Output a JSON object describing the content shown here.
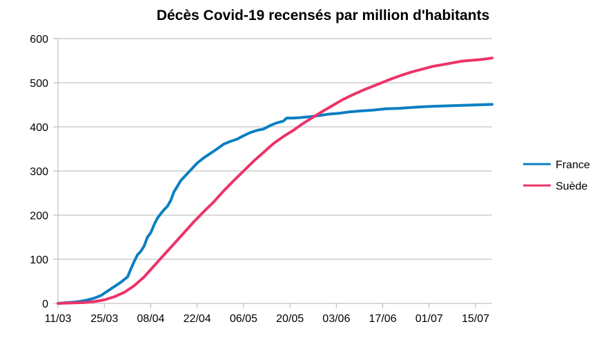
{
  "chart_data": {
    "type": "line",
    "title": "Décès Covid-19 recensés par million d'habitants",
    "xlabel": "",
    "ylabel": "",
    "x_ticks": [
      "11/03",
      "25/03",
      "08/04",
      "22/04",
      "06/05",
      "20/05",
      "03/06",
      "17/06",
      "01/07",
      "15/07"
    ],
    "y_ticks": [
      "0",
      "100",
      "200",
      "300",
      "400",
      "500",
      "600"
    ],
    "ylim": [
      0,
      600
    ],
    "grid": "horizontal",
    "legend_position": "right",
    "x_first": "2020-03-11",
    "x_last": "2020-07-20",
    "series": [
      {
        "name": "France",
        "color": "#0a7fc2",
        "points": [
          [
            "2020-03-11",
            0
          ],
          [
            "2020-03-14",
            2
          ],
          [
            "2020-03-16",
            3
          ],
          [
            "2020-03-18",
            5
          ],
          [
            "2020-03-20",
            8
          ],
          [
            "2020-03-22",
            12
          ],
          [
            "2020-03-24",
            18
          ],
          [
            "2020-03-26",
            28
          ],
          [
            "2020-03-28",
            38
          ],
          [
            "2020-03-30",
            48
          ],
          [
            "2020-04-01",
            60
          ],
          [
            "2020-04-02",
            78
          ],
          [
            "2020-04-03",
            95
          ],
          [
            "2020-04-04",
            110
          ],
          [
            "2020-04-05",
            118
          ],
          [
            "2020-04-06",
            130
          ],
          [
            "2020-04-07",
            150
          ],
          [
            "2020-04-08",
            160
          ],
          [
            "2020-04-09",
            178
          ],
          [
            "2020-04-10",
            193
          ],
          [
            "2020-04-11",
            203
          ],
          [
            "2020-04-12",
            212
          ],
          [
            "2020-04-13",
            220
          ],
          [
            "2020-04-14",
            233
          ],
          [
            "2020-04-15",
            253
          ],
          [
            "2020-04-16",
            265
          ],
          [
            "2020-04-17",
            278
          ],
          [
            "2020-04-18",
            286
          ],
          [
            "2020-04-20",
            302
          ],
          [
            "2020-04-22",
            318
          ],
          [
            "2020-04-24",
            330
          ],
          [
            "2020-04-26",
            340
          ],
          [
            "2020-04-28",
            350
          ],
          [
            "2020-04-30",
            361
          ],
          [
            "2020-05-02",
            367
          ],
          [
            "2020-05-04",
            372
          ],
          [
            "2020-05-06",
            380
          ],
          [
            "2020-05-08",
            387
          ],
          [
            "2020-05-10",
            392
          ],
          [
            "2020-05-12",
            395
          ],
          [
            "2020-05-14",
            403
          ],
          [
            "2020-05-16",
            409
          ],
          [
            "2020-05-18",
            413
          ],
          [
            "2020-05-19",
            420
          ],
          [
            "2020-05-21",
            420
          ],
          [
            "2020-05-23",
            421
          ],
          [
            "2020-05-26",
            423
          ],
          [
            "2020-05-29",
            426
          ],
          [
            "2020-06-01",
            429
          ],
          [
            "2020-06-04",
            431
          ],
          [
            "2020-06-07",
            434
          ],
          [
            "2020-06-10",
            436
          ],
          [
            "2020-06-14",
            438
          ],
          [
            "2020-06-18",
            441
          ],
          [
            "2020-06-22",
            442
          ],
          [
            "2020-06-26",
            444
          ],
          [
            "2020-06-30",
            446
          ],
          [
            "2020-07-04",
            447
          ],
          [
            "2020-07-08",
            448
          ],
          [
            "2020-07-12",
            449
          ],
          [
            "2020-07-16",
            450
          ],
          [
            "2020-07-20",
            451
          ]
        ]
      },
      {
        "name": "Suède",
        "color": "#ec3368",
        "points": [
          [
            "2020-03-11",
            0
          ],
          [
            "2020-03-15",
            1
          ],
          [
            "2020-03-19",
            2
          ],
          [
            "2020-03-22",
            4
          ],
          [
            "2020-03-25",
            8
          ],
          [
            "2020-03-28",
            15
          ],
          [
            "2020-03-31",
            25
          ],
          [
            "2020-04-03",
            40
          ],
          [
            "2020-04-06",
            60
          ],
          [
            "2020-04-09",
            85
          ],
          [
            "2020-04-12",
            110
          ],
          [
            "2020-04-15",
            135
          ],
          [
            "2020-04-18",
            160
          ],
          [
            "2020-04-21",
            185
          ],
          [
            "2020-04-24",
            208
          ],
          [
            "2020-04-27",
            230
          ],
          [
            "2020-04-30",
            255
          ],
          [
            "2020-05-03",
            278
          ],
          [
            "2020-05-06",
            300
          ],
          [
            "2020-05-09",
            322
          ],
          [
            "2020-05-12",
            342
          ],
          [
            "2020-05-15",
            362
          ],
          [
            "2020-05-18",
            378
          ],
          [
            "2020-05-21",
            392
          ],
          [
            "2020-05-24",
            408
          ],
          [
            "2020-05-27",
            422
          ],
          [
            "2020-05-30",
            436
          ],
          [
            "2020-06-02",
            449
          ],
          [
            "2020-06-05",
            462
          ],
          [
            "2020-06-08",
            473
          ],
          [
            "2020-06-11",
            483
          ],
          [
            "2020-06-14",
            492
          ],
          [
            "2020-06-17",
            501
          ],
          [
            "2020-06-20",
            510
          ],
          [
            "2020-06-23",
            518
          ],
          [
            "2020-06-26",
            525
          ],
          [
            "2020-06-29",
            531
          ],
          [
            "2020-07-02",
            537
          ],
          [
            "2020-07-05",
            541
          ],
          [
            "2020-07-08",
            545
          ],
          [
            "2020-07-11",
            549
          ],
          [
            "2020-07-14",
            551
          ],
          [
            "2020-07-17",
            553
          ],
          [
            "2020-07-20",
            556
          ]
        ]
      }
    ]
  }
}
